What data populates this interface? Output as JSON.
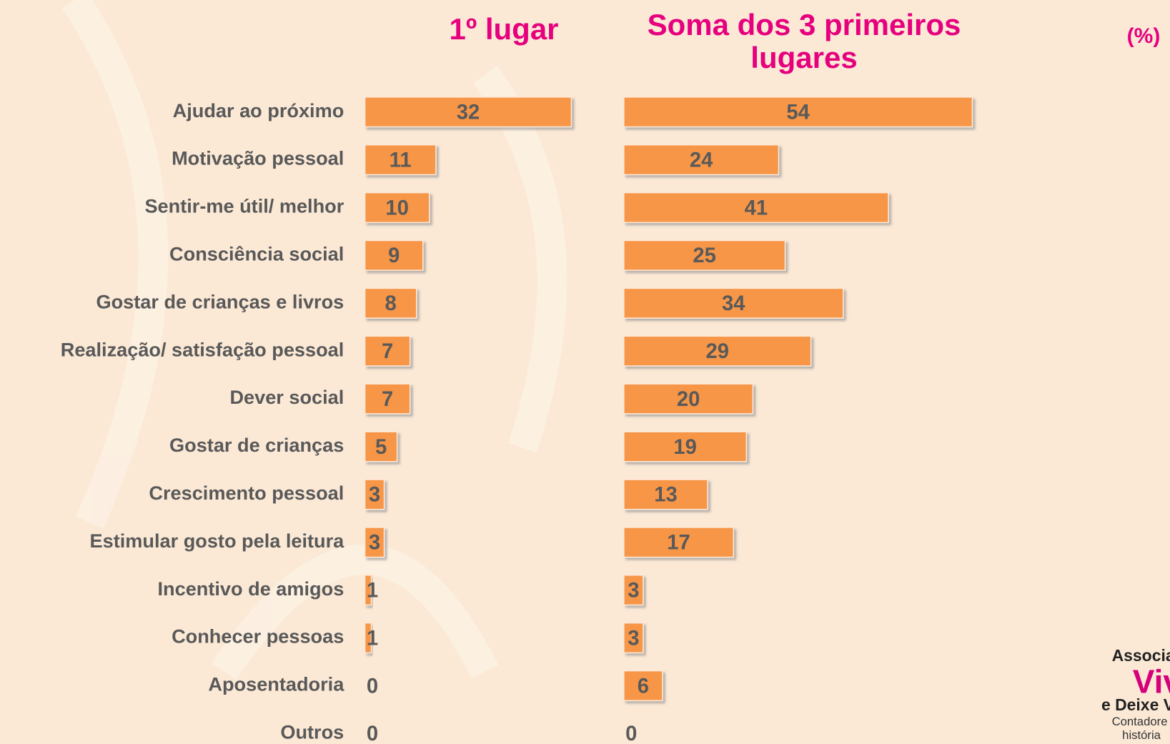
{
  "chart_data": [
    {
      "type": "bar",
      "orientation": "horizontal",
      "title": "1º lugar",
      "categories": [
        "Ajudar ao próximo",
        "Motivação pessoal",
        "Sentir-me útil/ melhor",
        "Consciência social",
        "Gostar de crianças e livros",
        "Realização/ satisfação pessoal",
        "Dever social",
        "Gostar de crianças",
        "Crescimento pessoal",
        "Estimular gosto pela leitura",
        "Incentivo de amigos",
        "Conhecer pessoas",
        "Aposentadoria",
        "Outros"
      ],
      "values": [
        32,
        11,
        10,
        9,
        8,
        7,
        7,
        5,
        3,
        3,
        1,
        1,
        0,
        0
      ],
      "color": "#f79646"
    },
    {
      "type": "bar",
      "orientation": "horizontal",
      "title": "Soma dos 3 primeiros lugares",
      "values": [
        54,
        24,
        41,
        25,
        34,
        29,
        20,
        19,
        13,
        17,
        3,
        3,
        6,
        0
      ],
      "color": "#f79646"
    }
  ],
  "unit_label": "(%)",
  "logo": {
    "lines": [
      "Associa",
      "Viv",
      "e Deixe V",
      "Contadore",
      "história"
    ]
  }
}
